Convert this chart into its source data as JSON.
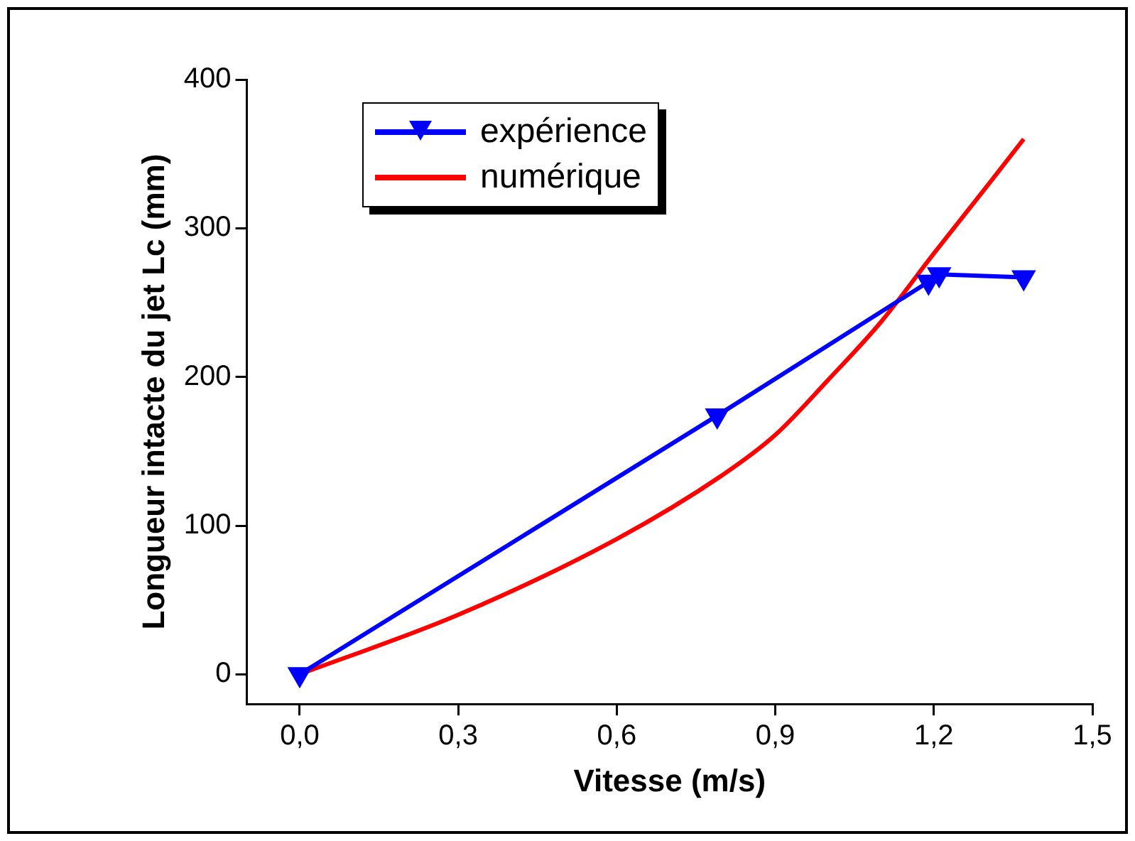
{
  "chart_data": {
    "type": "line",
    "xlabel": "Vitesse (m/s)",
    "ylabel": "Longueur intacte du jet Lc (mm)",
    "xlim": [
      -0.1,
      1.5
    ],
    "xticks": [
      {
        "value": 0,
        "label": "0,0"
      },
      {
        "value": 0.3,
        "label": "0,3"
      },
      {
        "value": 0.6,
        "label": "0,6"
      },
      {
        "value": 0.9,
        "label": "0,9"
      },
      {
        "value": 1.2,
        "label": "1,2"
      },
      {
        "value": 1.5,
        "label": "1,5"
      }
    ],
    "ylim": [
      -20,
      400
    ],
    "yticks": [
      0,
      100,
      200,
      300,
      400
    ],
    "grid": false,
    "legend": "top left",
    "line_style": "solid",
    "series": [
      {
        "name": "expérience",
        "color": "#0000ff",
        "marker": "triangle",
        "x": [
          0,
          0.79,
          1.19,
          1.21,
          1.37
        ],
        "values": [
          0,
          174,
          264,
          269,
          267
        ]
      },
      {
        "name": "numérique",
        "color": "#ff0000",
        "marker": "none",
        "x": [
          0,
          0.3,
          0.6,
          0.8,
          0.9,
          1.0,
          1.1,
          1.2,
          1.3,
          1.37
        ],
        "values": [
          0,
          40,
          91,
          134,
          161,
          198,
          237,
          283,
          328,
          360
        ]
      }
    ]
  }
}
